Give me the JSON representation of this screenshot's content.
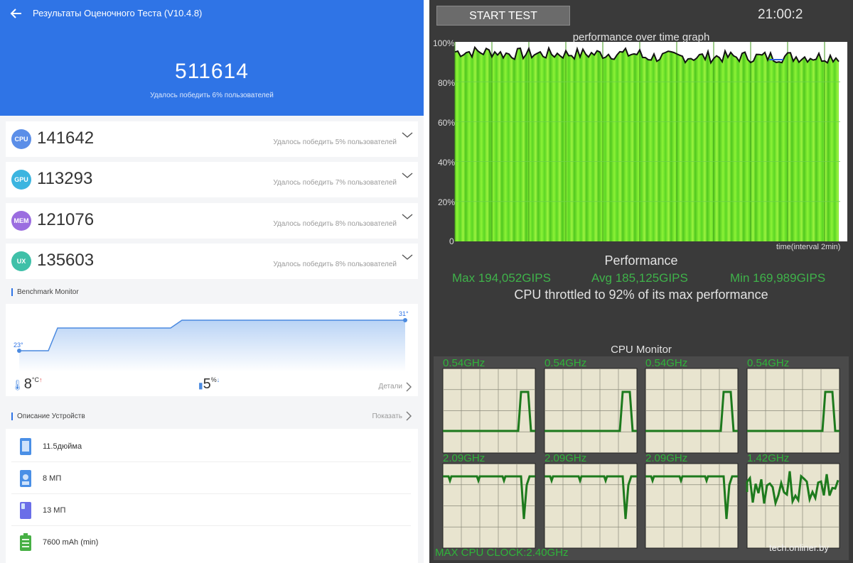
{
  "antutu": {
    "title": "Результаты Оценочного Теста (V10.4.8)",
    "total_score": "511614",
    "total_sub": "Удалось победить 6% пользователей",
    "scores": [
      {
        "badge": "CPU",
        "value": "141642",
        "sub": "Удалось победить 5% пользователей",
        "color": "#5b8ee8"
      },
      {
        "badge": "GPU",
        "value": "113293",
        "sub": "Удалось победить 7% пользователей",
        "color": "#3cb5e0"
      },
      {
        "badge": "MEM",
        "value": "121076",
        "sub": "Удалось победить 8% пользователей",
        "color": "#9b6de0"
      },
      {
        "badge": "UX",
        "value": "135603",
        "sub": "Удалось победить 8% пользователей",
        "color": "#3fc0a8"
      }
    ],
    "monitor": {
      "title": "Benchmark Monitor",
      "start_label": "23°",
      "end_label": "31°",
      "temp_value": "8",
      "temp_unit": "°C",
      "temp_arrow": "↑",
      "battery_value": "5",
      "battery_unit": "%",
      "battery_arrow": "↓",
      "details": "Детали"
    },
    "device": {
      "title": "Описание Устройств",
      "show": "Показать",
      "items": [
        {
          "icon": "tablet-screen-icon",
          "text": "11.5дюйма"
        },
        {
          "icon": "front-camera-icon",
          "text": "8 МП"
        },
        {
          "icon": "rear-camera-icon",
          "text": "13 МП"
        },
        {
          "icon": "battery-icon",
          "text": "7600 mAh (min)"
        }
      ]
    }
  },
  "throttle": {
    "start_button": "START TEST",
    "clock": "21:00:2",
    "graph_title": "performance over time graph",
    "y_ticks": [
      "100%",
      "80%",
      "60%",
      "40%",
      "20%",
      "0"
    ],
    "x_label": "time(interval 2min)",
    "performance_title": "Performance",
    "max": "Max 194,052GIPS",
    "avg": "Avg 185,125GIPS",
    "min": "Min 169,989GIPS",
    "throttled": "CPU throttled to 92% of its max performance",
    "cpu_monitor_title": "CPU Monitor",
    "cores": [
      "0.54GHz",
      "0.54GHz",
      "0.54GHz",
      "0.54GHz",
      "2.09GHz",
      "2.09GHz",
      "2.09GHz",
      "1.42GHz"
    ],
    "max_clock": "MAX CPU CLOCK:2.40GHz",
    "watermark": "tech.onliner.by"
  },
  "colors": {
    "accent": "#2f74e6",
    "graph_green": "#6fe82a",
    "core_line": "#1d7a1d",
    "core_bg": "#e8e4cf"
  }
}
